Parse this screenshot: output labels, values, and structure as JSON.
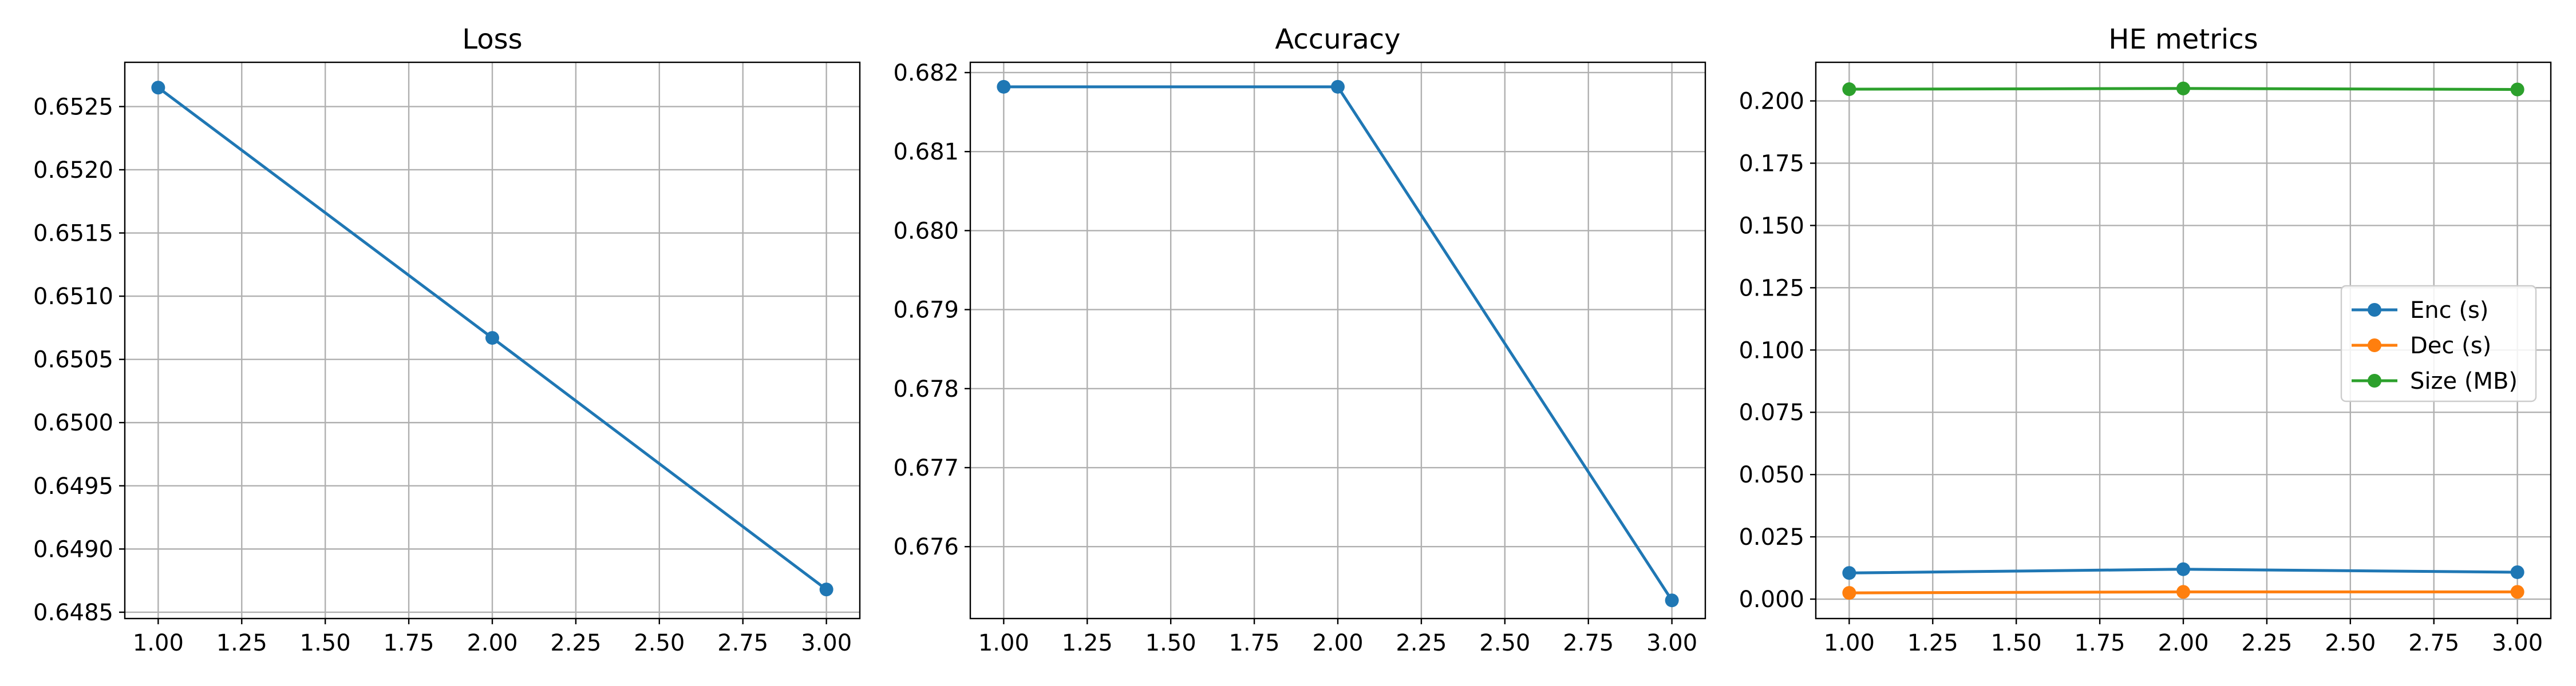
{
  "chart_data": [
    {
      "type": "line",
      "title": "Loss",
      "xlabel": "",
      "ylabel": "",
      "x": [
        1,
        2,
        3
      ],
      "xlim": [
        0.9,
        3.1
      ],
      "ylim": [
        0.64845,
        0.65285
      ],
      "xticks": [
        "1.00",
        "1.25",
        "1.50",
        "1.75",
        "2.00",
        "2.25",
        "2.50",
        "2.75",
        "3.00"
      ],
      "yticks": [
        "0.6485",
        "0.6490",
        "0.6495",
        "0.6500",
        "0.6505",
        "0.6510",
        "0.6515",
        "0.6520",
        "0.6525"
      ],
      "grid": true,
      "series": [
        {
          "values": [
            0.65265,
            0.65067,
            0.64868
          ],
          "color": "#1f77b4"
        }
      ]
    },
    {
      "type": "line",
      "title": "Accuracy",
      "xlabel": "",
      "ylabel": "",
      "x": [
        1,
        2,
        3
      ],
      "xlim": [
        0.9,
        3.1
      ],
      "ylim": [
        0.67509,
        0.68213
      ],
      "xticks": [
        "1.00",
        "1.25",
        "1.50",
        "1.75",
        "2.00",
        "2.25",
        "2.50",
        "2.75",
        "3.00"
      ],
      "yticks": [
        "0.676",
        "0.677",
        "0.678",
        "0.679",
        "0.680",
        "0.681",
        "0.682"
      ],
      "grid": true,
      "series": [
        {
          "values": [
            0.68182,
            0.68182,
            0.67532
          ],
          "color": "#1f77b4"
        }
      ]
    },
    {
      "type": "line",
      "title": "HE metrics",
      "xlabel": "",
      "ylabel": "",
      "x": [
        1,
        2,
        3
      ],
      "xlim": [
        0.9,
        3.1
      ],
      "ylim": [
        -0.0078,
        0.2155
      ],
      "xticks": [
        "1.00",
        "1.25",
        "1.50",
        "1.75",
        "2.00",
        "2.25",
        "2.50",
        "2.75",
        "3.00"
      ],
      "yticks": [
        "0.000",
        "0.025",
        "0.050",
        "0.075",
        "0.100",
        "0.125",
        "0.150",
        "0.175",
        "0.200"
      ],
      "grid": true,
      "legend": "center-right",
      "series": [
        {
          "name": "Enc (s)",
          "values": [
            0.0105,
            0.012,
            0.0108
          ],
          "color": "#1f77b4"
        },
        {
          "name": "Dec (s)",
          "values": [
            0.0025,
            0.0029,
            0.0029
          ],
          "color": "#ff7f0e"
        },
        {
          "name": "Size (MB)",
          "values": [
            0.2047,
            0.205,
            0.2046
          ],
          "color": "#2ca02c"
        }
      ]
    }
  ]
}
